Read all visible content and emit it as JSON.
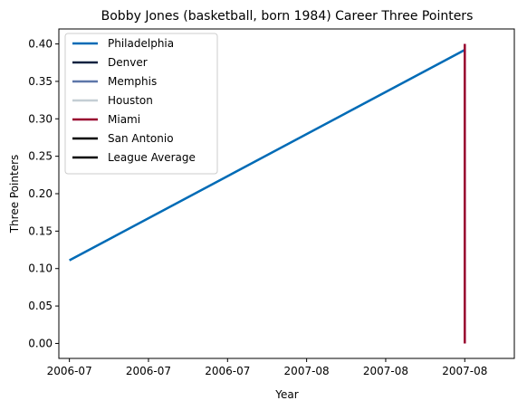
{
  "chart_data": {
    "type": "line",
    "title": "Bobby Jones (basketball, born 1984) Career Three Pointers",
    "xlabel": "Year",
    "ylabel": "Three Pointers",
    "xlim": [
      "2006-06-21",
      "2007-08-27"
    ],
    "ylim": [
      -0.02,
      0.42
    ],
    "x_ticks": [
      "2006-07",
      "2006-07",
      "2006-07",
      "2007-08",
      "2007-08",
      "2007-08"
    ],
    "x_tick_dates": [
      "2006-07-01",
      "2006-09-14",
      "2006-11-28",
      "2007-02-11",
      "2007-04-27",
      "2007-07-11"
    ],
    "y_ticks": [
      "0.00",
      "0.05",
      "0.10",
      "0.15",
      "0.20",
      "0.25",
      "0.30",
      "0.35",
      "0.40"
    ],
    "y_tick_values": [
      0,
      0.05,
      0.1,
      0.15,
      0.2,
      0.25,
      0.3,
      0.35,
      0.4
    ],
    "grid": false,
    "legend_position": "upper-left",
    "series": [
      {
        "name": "Philadelphia",
        "color": "#006bb6",
        "x": [
          "2006-07-01",
          "2007-07-11"
        ],
        "y": [
          0.111,
          0.392
        ]
      },
      {
        "name": "Denver",
        "color": "#0e2240",
        "x": [],
        "y": []
      },
      {
        "name": "Memphis",
        "color": "#5d76a9",
        "x": [],
        "y": []
      },
      {
        "name": "Houston",
        "color": "#c4ced4",
        "x": [],
        "y": []
      },
      {
        "name": "Miami",
        "color": "#98002e",
        "x": [
          "2007-07-11",
          "2007-07-11"
        ],
        "y": [
          0.0,
          0.4
        ]
      },
      {
        "name": "San Antonio",
        "color": "#000000",
        "x": [],
        "y": []
      },
      {
        "name": "League Average",
        "color": "#000000",
        "x": [],
        "y": []
      }
    ]
  }
}
